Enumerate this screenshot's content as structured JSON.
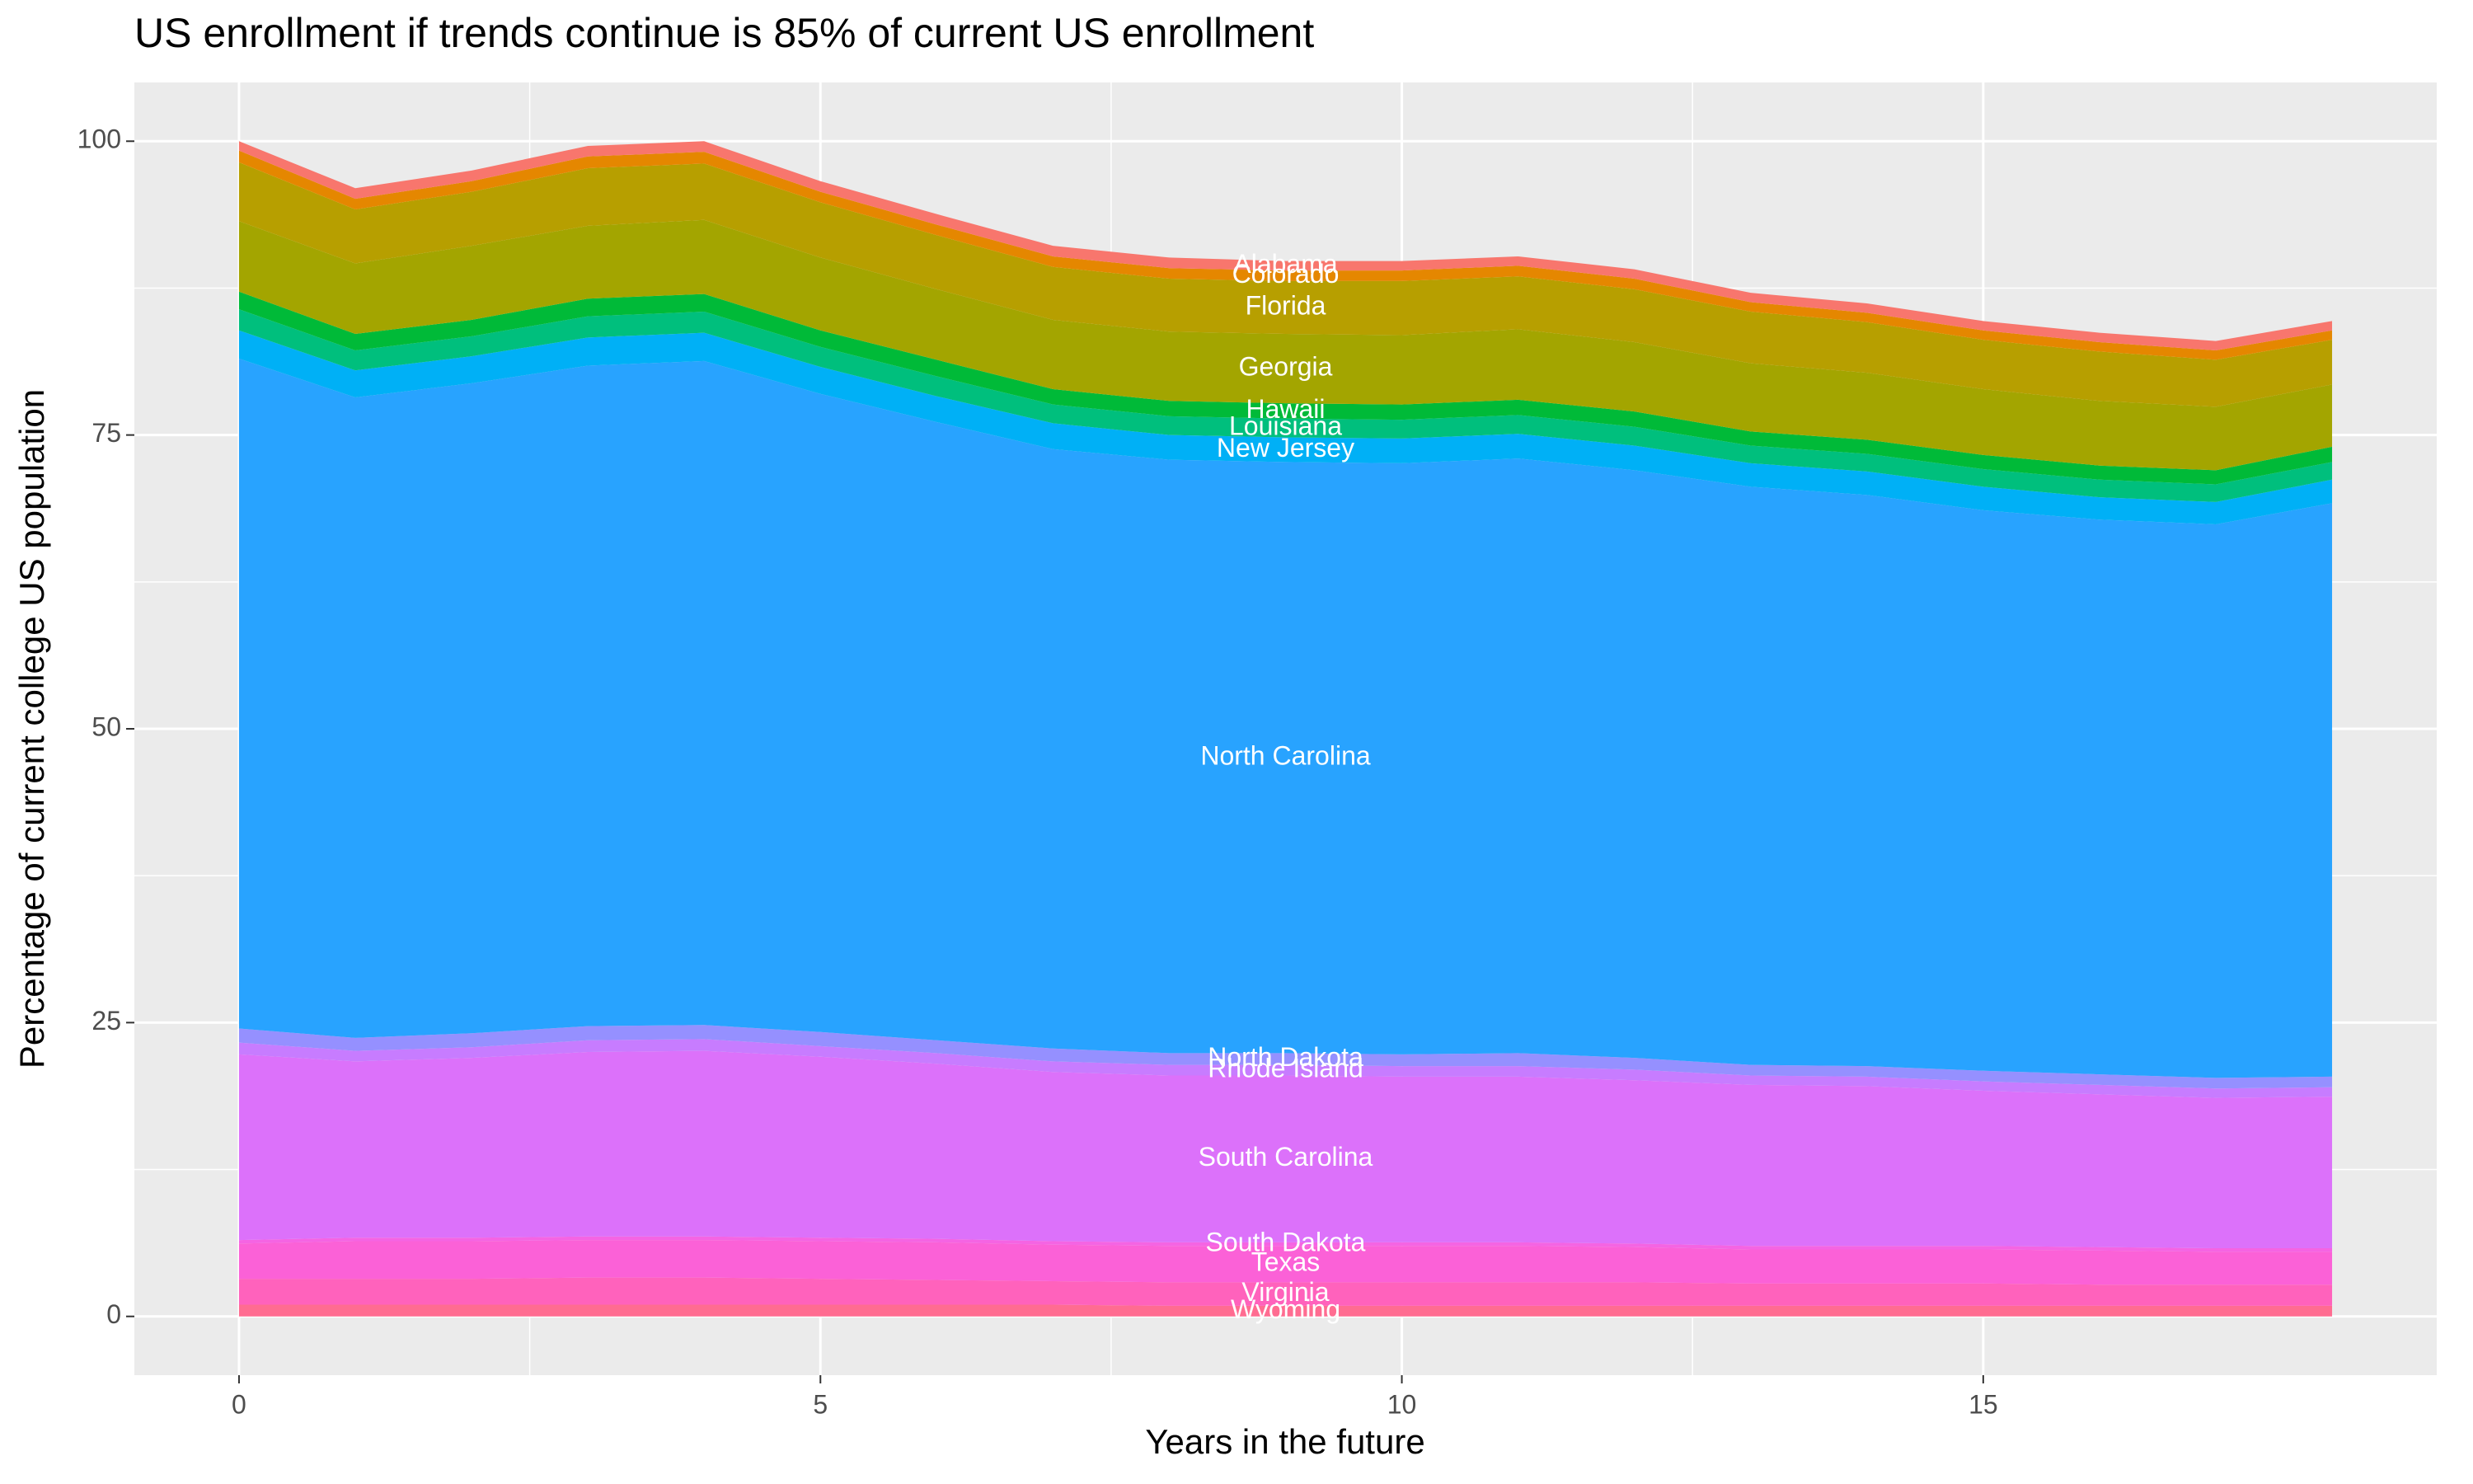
{
  "chart_data": {
    "type": "stacked-area",
    "title": "US enrollment if trends continue is 85% of current US enrollment",
    "x_label": "Years in the future",
    "y_label": "Percentage of current college US population",
    "x": [
      0,
      1,
      2,
      3,
      4,
      5,
      6,
      7,
      8,
      9,
      10,
      11,
      12,
      13,
      14,
      15,
      16,
      17,
      18
    ],
    "xlim": [
      -0.9,
      18.9
    ],
    "xticks": [
      0,
      5,
      10,
      15
    ],
    "ylim": [
      -5,
      105
    ],
    "yticks": [
      0,
      25,
      50,
      75,
      100
    ],
    "grid": true,
    "series": [
      {
        "name": "Alabama",
        "color": "#F8766D",
        "values": [
          0.8,
          0.9,
          0.9,
          0.9,
          0.9,
          0.9,
          0.9,
          0.9,
          0.9,
          0.8,
          0.8,
          0.8,
          0.8,
          0.8,
          0.8,
          0.8,
          0.8,
          0.8,
          0.8
        ]
      },
      {
        "name": "Colorado",
        "color": "#E58700",
        "values": [
          1.0,
          0.9,
          0.9,
          1.0,
          1.0,
          0.9,
          0.9,
          0.9,
          0.9,
          0.9,
          0.9,
          0.9,
          0.9,
          0.8,
          0.8,
          0.8,
          0.8,
          0.8,
          0.8
        ]
      },
      {
        "name": "Florida",
        "color": "#B79F00",
        "values": [
          5.0,
          4.6,
          4.6,
          4.9,
          4.8,
          4.7,
          4.6,
          4.5,
          4.5,
          4.5,
          4.6,
          4.5,
          4.5,
          4.4,
          4.3,
          4.2,
          4.2,
          4.0,
          3.8
        ]
      },
      {
        "name": "Georgia",
        "color": "#A3A500",
        "values": [
          6.0,
          6.0,
          6.3,
          6.2,
          6.3,
          6.2,
          6.0,
          5.9,
          5.9,
          5.9,
          5.9,
          6.0,
          5.9,
          5.8,
          5.7,
          5.6,
          5.5,
          5.4,
          5.3
        ]
      },
      {
        "name": "Hawaii",
        "color": "#00BA38",
        "values": [
          1.5,
          1.4,
          1.4,
          1.5,
          1.5,
          1.4,
          1.4,
          1.3,
          1.3,
          1.3,
          1.3,
          1.3,
          1.3,
          1.2,
          1.2,
          1.2,
          1.2,
          1.2,
          1.3
        ]
      },
      {
        "name": "Louisiana",
        "color": "#00BF7D",
        "values": [
          1.8,
          1.7,
          1.7,
          1.8,
          1.8,
          1.7,
          1.7,
          1.6,
          1.6,
          1.6,
          1.6,
          1.6,
          1.6,
          1.5,
          1.5,
          1.5,
          1.5,
          1.5,
          1.5
        ]
      },
      {
        "name": "New Jersey",
        "color": "#00B0F6",
        "values": [
          2.4,
          2.3,
          2.3,
          2.4,
          2.4,
          2.3,
          2.2,
          2.2,
          2.1,
          2.1,
          2.1,
          2.1,
          2.1,
          2.0,
          2.0,
          2.0,
          1.9,
          1.9,
          2.0
        ]
      },
      {
        "name": "North Carolina",
        "color": "#28A3FF",
        "values": [
          57.0,
          54.5,
          55.3,
          56.2,
          56.5,
          54.3,
          52.6,
          51.0,
          50.5,
          50.3,
          50.3,
          50.6,
          50.0,
          49.2,
          48.6,
          47.7,
          47.2,
          47.1,
          48.8
        ]
      },
      {
        "name": "North Dakota",
        "color": "#9590FF",
        "values": [
          1.2,
          1.1,
          1.2,
          1.2,
          1.2,
          1.2,
          1.1,
          1.1,
          1.0,
          1.0,
          1.0,
          1.1,
          1.0,
          0.9,
          0.9,
          0.9,
          0.9,
          0.9,
          0.9
        ]
      },
      {
        "name": "Rhode Island",
        "color": "#C77CFF",
        "values": [
          1.0,
          0.9,
          0.9,
          1.0,
          1.0,
          0.9,
          0.9,
          0.9,
          0.9,
          0.9,
          0.9,
          0.9,
          0.9,
          0.8,
          0.8,
          0.8,
          0.8,
          0.8,
          0.8
        ]
      },
      {
        "name": "South Carolina",
        "color": "#DC71FA",
        "values": [
          15.8,
          15.0,
          15.3,
          15.7,
          15.8,
          15.4,
          14.9,
          14.4,
          14.2,
          14.2,
          14.1,
          14.1,
          13.9,
          13.7,
          13.6,
          13.2,
          13.0,
          12.8,
          12.9
        ]
      },
      {
        "name": "South Dakota",
        "color": "#F564E3",
        "values": [
          0.3,
          0.3,
          0.3,
          0.3,
          0.3,
          0.3,
          0.3,
          0.3,
          0.3,
          0.3,
          0.3,
          0.3,
          0.3,
          0.3,
          0.3,
          0.3,
          0.3,
          0.3,
          0.3
        ]
      },
      {
        "name": "Texas",
        "color": "#FB61D7",
        "values": [
          3.0,
          3.2,
          3.2,
          3.2,
          3.2,
          3.2,
          3.2,
          3.1,
          3.1,
          3.1,
          3.1,
          3.1,
          3.0,
          2.9,
          2.9,
          2.9,
          2.9,
          2.8,
          2.8
        ]
      },
      {
        "name": "Virginia",
        "color": "#FF62BC",
        "values": [
          2.2,
          2.2,
          2.2,
          2.3,
          2.3,
          2.2,
          2.1,
          2.0,
          2.0,
          2.0,
          2.0,
          2.0,
          2.0,
          1.9,
          1.9,
          1.9,
          1.8,
          1.8,
          1.8
        ]
      },
      {
        "name": "Wyoming",
        "color": "#FF6C91",
        "values": [
          1.0,
          1.0,
          1.0,
          1.0,
          1.0,
          1.0,
          1.0,
          1.0,
          0.9,
          0.9,
          0.9,
          0.9,
          0.9,
          0.9,
          0.9,
          0.9,
          0.9,
          0.9,
          0.9
        ]
      }
    ]
  }
}
